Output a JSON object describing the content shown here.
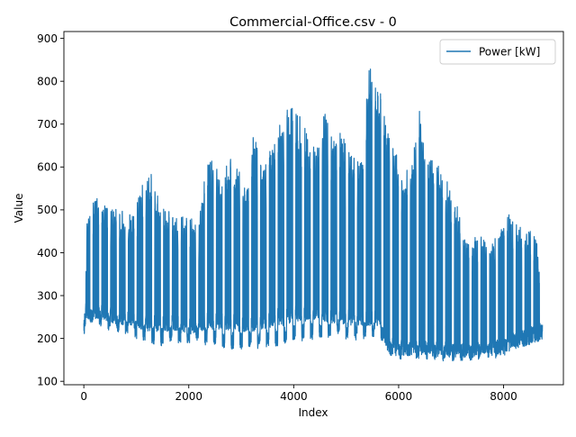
{
  "chart_data": {
    "type": "line",
    "title": "Commercial-Office.csv - 0",
    "xlabel": "Index",
    "ylabel": "Value",
    "xlim": [
      -380,
      9140
    ],
    "ylim": [
      92,
      916
    ],
    "xticks": [
      0,
      2000,
      4000,
      6000,
      8000
    ],
    "xtick_labels": [
      "0",
      "2000",
      "4000",
      "6000",
      "8000"
    ],
    "yticks": [
      100,
      200,
      300,
      400,
      500,
      600,
      700,
      800,
      900
    ],
    "ytick_labels": [
      "100",
      "200",
      "300",
      "400",
      "500",
      "600",
      "700",
      "800",
      "900"
    ],
    "grid": false,
    "legend_position": "top-right",
    "series": [
      {
        "name": "Power [kW]",
        "color": "#1f77b4",
        "x": [
          0,
          30,
          60,
          90,
          240,
          390,
          540,
          690,
          840,
          990,
          1140,
          1290,
          1440,
          1590,
          1740,
          1890,
          2040,
          2190,
          2340,
          2490,
          2640,
          2790,
          2940,
          3090,
          3240,
          3390,
          3540,
          3690,
          3840,
          3990,
          4140,
          4290,
          4440,
          4590,
          4740,
          4890,
          5040,
          5190,
          5340,
          5430,
          5490,
          5640,
          5790,
          5940,
          6090,
          6240,
          6390,
          6540,
          6690,
          6840,
          6990,
          7140,
          7290,
          7440,
          7590,
          7740,
          7890,
          8040,
          8190,
          8340,
          8490,
          8640,
          8740
        ],
        "daily_max": [
          210,
          320,
          500,
          510,
          540,
          510,
          505,
          500,
          495,
          505,
          570,
          585,
          520,
          505,
          480,
          485,
          480,
          480,
          620,
          615,
          590,
          630,
          600,
          550,
          690,
          600,
          640,
          680,
          760,
          740,
          720,
          670,
          660,
          730,
          700,
          680,
          650,
          610,
          640,
          875,
          830,
          780,
          690,
          640,
          590,
          600,
          740,
          610,
          620,
          590,
          560,
          500,
          440,
          440,
          440,
          420,
          440,
          510,
          470,
          460,
          450,
          450,
          230
        ],
        "daily_min": [
          195,
          210,
          210,
          220,
          230,
          225,
          215,
          205,
          205,
          200,
          190,
          185,
          180,
          185,
          185,
          180,
          185,
          190,
          180,
          180,
          175,
          170,
          175,
          175,
          170,
          175,
          180,
          180,
          185,
          190,
          190,
          195,
          200,
          195,
          200,
          200,
          195,
          195,
          195,
          195,
          195,
          200,
          160,
          145,
          150,
          150,
          150,
          150,
          145,
          145,
          145,
          145,
          145,
          145,
          150,
          150,
          155,
          160,
          170,
          175,
          185,
          190,
          195
        ],
        "weekday_base": [
          230,
          250,
          265,
          260,
          265,
          260,
          255,
          250,
          250,
          245,
          240,
          235,
          235,
          235,
          235,
          230,
          230,
          235,
          240,
          240,
          240,
          240,
          235,
          235,
          235,
          240,
          245,
          250,
          250,
          255,
          260,
          260,
          265,
          260,
          255,
          255,
          250,
          250,
          250,
          250,
          250,
          250,
          190,
          180,
          180,
          180,
          180,
          180,
          175,
          175,
          175,
          175,
          175,
          175,
          180,
          180,
          180,
          185,
          195,
          200,
          205,
          210,
          215
        ]
      }
    ]
  }
}
